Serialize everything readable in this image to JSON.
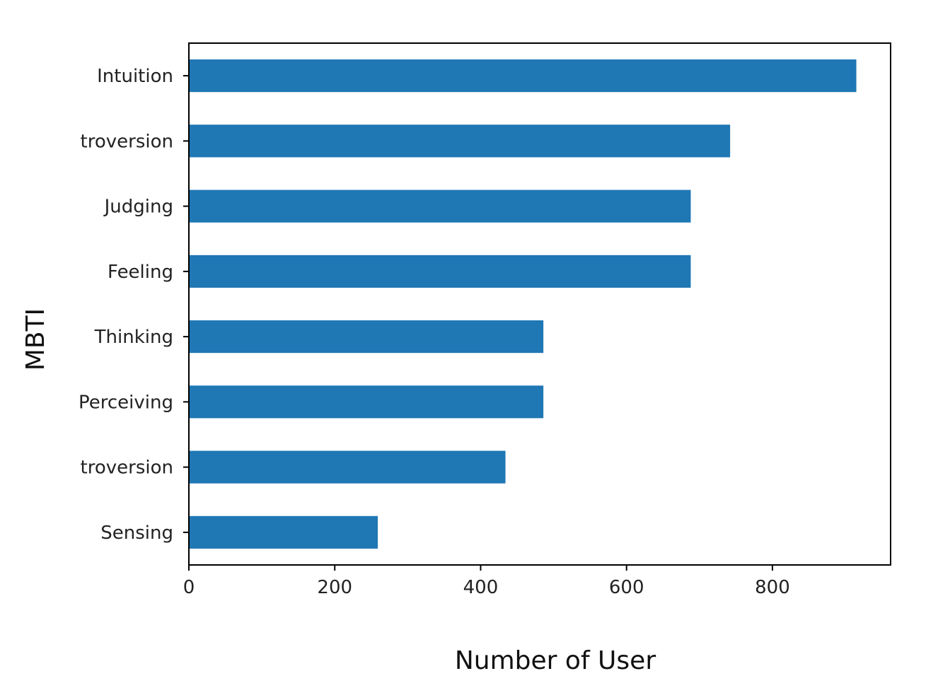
{
  "chart_data": {
    "type": "bar",
    "orientation": "horizontal",
    "categories": [
      "Intuition",
      "troversion",
      "Judging",
      "Feeling",
      "Thinking",
      "Perceiving",
      "troversion",
      "Sensing"
    ],
    "values": [
      915,
      742,
      688,
      688,
      486,
      486,
      434,
      259
    ],
    "xlabel": "Number of User",
    "ylabel": "MBTI",
    "xlim": [
      0,
      962
    ],
    "xticks": [
      "0",
      "200",
      "400",
      "600",
      "800"
    ],
    "xtick_values": [
      0,
      200,
      400,
      600,
      800
    ],
    "bar_color": "#1f77b4",
    "grid": false,
    "legend": "none"
  }
}
